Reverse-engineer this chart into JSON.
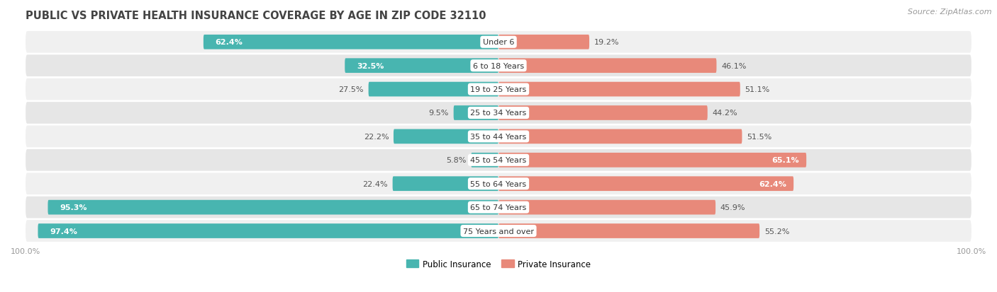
{
  "title": "PUBLIC VS PRIVATE HEALTH INSURANCE COVERAGE BY AGE IN ZIP CODE 32110",
  "source": "Source: ZipAtlas.com",
  "categories": [
    "Under 6",
    "6 to 18 Years",
    "19 to 25 Years",
    "25 to 34 Years",
    "35 to 44 Years",
    "45 to 54 Years",
    "55 to 64 Years",
    "65 to 74 Years",
    "75 Years and over"
  ],
  "public_values": [
    62.4,
    32.5,
    27.5,
    9.5,
    22.2,
    5.8,
    22.4,
    95.3,
    97.4
  ],
  "private_values": [
    19.2,
    46.1,
    51.1,
    44.2,
    51.5,
    65.1,
    62.4,
    45.9,
    55.2
  ],
  "public_color": "#48b5b0",
  "private_color": "#e8897a",
  "row_bg_odd": "#f0f0f0",
  "row_bg_even": "#e6e6e6",
  "background_color": "#ffffff",
  "axis_label_color": "#999999",
  "title_color": "#444444",
  "bar_height": 0.62,
  "xlim": 100.0,
  "legend_public": "Public Insurance",
  "legend_private": "Private Insurance",
  "pub_label_white_threshold": 30,
  "priv_label_white_threshold": 58,
  "title_fontsize": 10.5,
  "source_fontsize": 8,
  "bar_label_fontsize": 8,
  "cat_label_fontsize": 8,
  "axis_tick_fontsize": 8
}
